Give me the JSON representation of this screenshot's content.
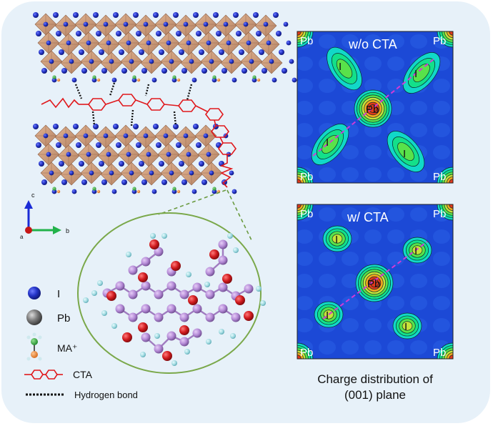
{
  "figure": {
    "colors": {
      "background": "#e7f1f9",
      "octahedra": "#c9946e",
      "iodide": "#1f2fb8",
      "lead": "#7a7a7a",
      "cta": "#e0181c",
      "hbond": "#111111",
      "carbon": "#b58ad6",
      "oxygen": "#d21e22",
      "hydrogen": "#9fd9e0",
      "circle_outline": "#7aa84a",
      "map_base": "#1c49d6"
    },
    "legend": {
      "iodide": "I",
      "lead": "Pb",
      "ma": "MA⁺",
      "cta": "CTA",
      "hbond": "Hydrogen bond"
    },
    "axes": {
      "c": "c",
      "b": "b",
      "a": "a"
    },
    "maps": [
      {
        "title": "w/o CTA",
        "center_label": "Pb",
        "corner_labels": [
          "Pb",
          "Pb",
          "Pb",
          "Pb"
        ],
        "iodide_labels": [
          "I",
          "I",
          "I",
          "I"
        ],
        "iodide_shape": "elongated"
      },
      {
        "title": "w/ CTA",
        "center_label": "Pb",
        "corner_labels": [
          "Pb",
          "Pb",
          "Pb",
          "Pb"
        ],
        "iodide_labels": [
          "I",
          "I",
          "I",
          "I"
        ],
        "iodide_shape": "round"
      }
    ],
    "caption_line1": "Charge distribution of",
    "caption_line2": "(001) plane"
  }
}
